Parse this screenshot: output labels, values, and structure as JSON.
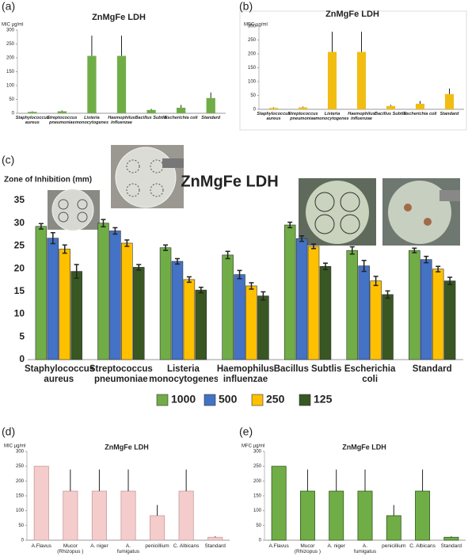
{
  "chart_data": [
    {
      "type": "bar",
      "label": "(a)",
      "title": "ZnMgFe LDH",
      "ylabel": "MIC µg/ml",
      "categories": [
        "Staphylococcus\naureus",
        "Streptococcus\npneumoniae",
        "Listeria\nmonocytogenes",
        "Haemophilus\ninfluenzae",
        "Bacillus Subtlis",
        "Escherichia coli",
        "Standard"
      ],
      "values": [
        5,
        7,
        207,
        207,
        12,
        20,
        55
      ],
      "errors": [
        2,
        3,
        73,
        73,
        4,
        10,
        20
      ],
      "errorbars": "upper",
      "color": "#70ad47",
      "ylim": [
        0,
        300
      ],
      "yticks": [
        0,
        50,
        100,
        150,
        200,
        250,
        300
      ]
    },
    {
      "type": "bar",
      "label": "(b)",
      "title": "ZnMgFe LDH",
      "ylabel": "MBC µg/ml",
      "categories": [
        "Staphylococcus\naureus",
        "Streptococcus\npneumoniae",
        "Listeria\nmonocytogenes",
        "Haemophilus\ninfluenzae",
        "Bacillus Subtlis",
        "Escherichia coli",
        "Standard"
      ],
      "values": [
        5,
        7,
        207,
        207,
        12,
        20,
        55
      ],
      "errors": [
        2,
        3,
        73,
        73,
        4,
        10,
        20
      ],
      "errorbars": "upper",
      "color": "#f2bd12",
      "ylim": [
        0,
        300
      ],
      "yticks": [
        0,
        50,
        100,
        150,
        200,
        250,
        300
      ]
    },
    {
      "type": "grouped_bar",
      "label": "(c)",
      "title": "ZnMgFe LDH",
      "ylabel": "Zone of Inhibition (mm)",
      "categories": [
        "Staphylococcus\naureus",
        "Streptococcus\npneumoniae",
        "Listeria\nmonocytogenes",
        "Haemophilus\ninfluenzae",
        "Bacillus Subtlis",
        "Escherichia coli",
        "Standard"
      ],
      "series": [
        {
          "name": "1000",
          "color": "#70ad47",
          "values": [
            29.3,
            30,
            24.6,
            23,
            29.6,
            24,
            24
          ],
          "errors": [
            0.6,
            0.8,
            0.6,
            0.8,
            0.6,
            0.8,
            0.5
          ]
        },
        {
          "name": "500",
          "color": "#4472c4",
          "values": [
            26.7,
            28.3,
            21.6,
            18.7,
            26.6,
            20.6,
            22
          ],
          "errors": [
            1.2,
            0.7,
            0.6,
            0.9,
            0.6,
            1.2,
            0.7
          ]
        },
        {
          "name": "250",
          "color": "#ffc000",
          "values": [
            24.3,
            25.6,
            17.6,
            16.2,
            24.9,
            17.3,
            19.9
          ],
          "errors": [
            0.9,
            0.7,
            0.6,
            0.7,
            0.5,
            1,
            0.6
          ]
        },
        {
          "name": "125",
          "color": "#385723",
          "values": [
            19.4,
            20.3,
            15.3,
            14,
            20.5,
            14.3,
            17.3
          ],
          "errors": [
            1.5,
            0.6,
            0.6,
            0.9,
            0.7,
            0.8,
            0.8
          ]
        }
      ],
      "errorbars": "both",
      "legend": "bottom",
      "ylim": [
        0,
        35
      ],
      "yticks": [
        0,
        5,
        10,
        15,
        20,
        25,
        30,
        35
      ]
    },
    {
      "type": "bar",
      "label": "(d)",
      "title": "ZnMgFe LDH",
      "ylabel": "MIC µg/ml",
      "categories": [
        "A.Flavus",
        "Mucor\n(Rhizopus )",
        "A. niger",
        "A.\nfumigatus",
        "penicillium",
        "C. Albicans",
        "Standard"
      ],
      "values": [
        250,
        166,
        166,
        166,
        83,
        166,
        10
      ],
      "errors": [
        0,
        73,
        73,
        73,
        36,
        73,
        3
      ],
      "errorbars": "upper",
      "color": "#f4cccc",
      "edgecolor": "#c99a9a",
      "ylim": [
        0,
        300
      ],
      "yticks": [
        0,
        50,
        100,
        150,
        200,
        250,
        300
      ]
    },
    {
      "type": "bar",
      "label": "(e)",
      "title": "ZnMgFe LDH",
      "ylabel": "MFC µg/ml",
      "categories": [
        "A.Flavus",
        "Mucor\n(Rhizopus )",
        "A. niger",
        "A.\nfumigatus",
        "penicillium",
        "C. Albicans",
        "Standard"
      ],
      "values": [
        250,
        166,
        166,
        166,
        83,
        166,
        10
      ],
      "errors": [
        0,
        73,
        73,
        73,
        36,
        73,
        3
      ],
      "errorbars": "upper",
      "color": "#70ad47",
      "edgecolor": "#2f5a1a",
      "ylim": [
        0,
        300
      ],
      "yticks": [
        0,
        50,
        100,
        150,
        200,
        250,
        300
      ]
    }
  ]
}
